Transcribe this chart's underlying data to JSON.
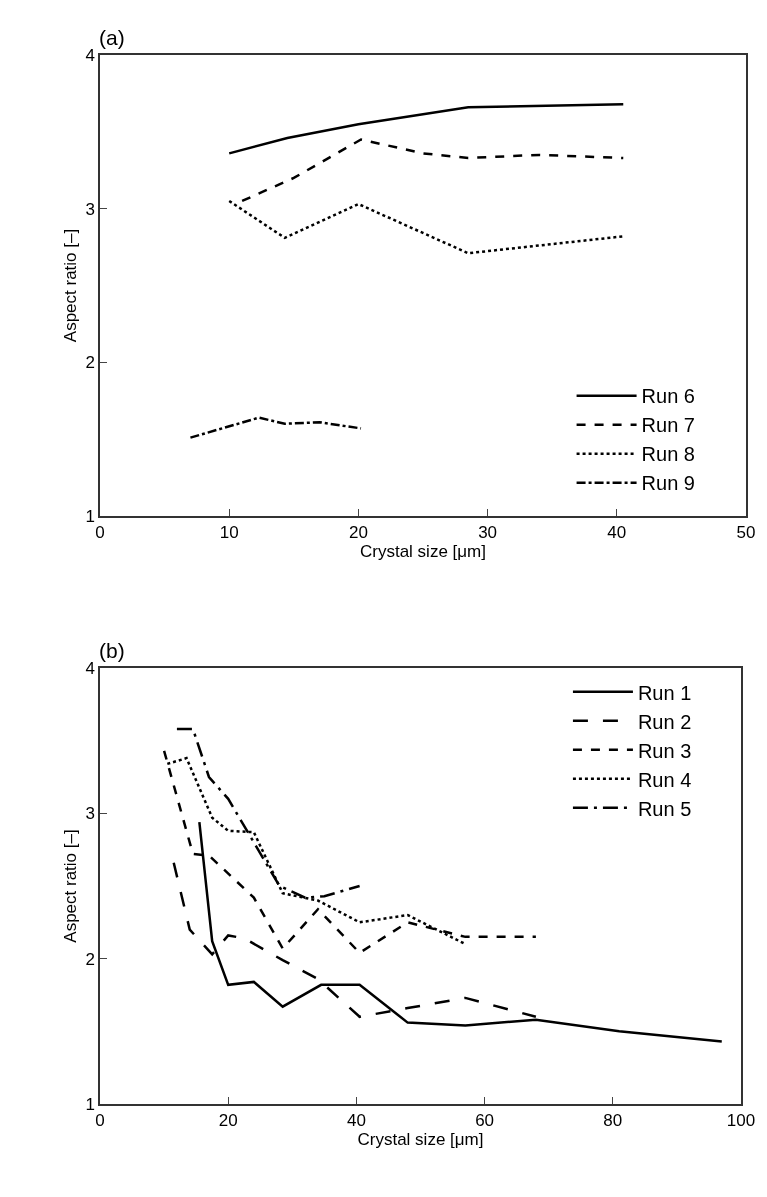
{
  "chart_data": [
    {
      "type": "line",
      "annotations": [
        "(a)"
      ],
      "xlabel": "Crystal size [μm]",
      "ylabel": "Aspect ratio [–]",
      "xlim": [
        0,
        50
      ],
      "xticks": [
        0,
        10,
        20,
        30,
        40,
        50
      ],
      "ylim": [
        1,
        4
      ],
      "yticks": [
        1,
        2,
        3,
        4
      ],
      "grid": false,
      "legend": "bottom right",
      "marker": "none",
      "series": [
        {
          "name": "Run 6",
          "color": "#000000",
          "line_style": "solid",
          "x": [
            10,
            14.5,
            20,
            28.5,
            40.5
          ],
          "values": [
            3.36,
            3.46,
            3.55,
            3.66,
            3.68
          ]
        },
        {
          "name": "Run 7",
          "color": "#000000",
          "line_style": "dashed",
          "x": [
            11,
            15,
            20.2,
            25,
            28.5,
            34,
            40.5
          ],
          "values": [
            3.05,
            3.2,
            3.45,
            3.36,
            3.33,
            3.35,
            3.33
          ]
        },
        {
          "name": "Run 8",
          "color": "#000000",
          "line_style": "dotted",
          "x": [
            10,
            14.3,
            20,
            28.5,
            40.5
          ],
          "values": [
            3.05,
            2.81,
            3.03,
            2.71,
            2.82
          ]
        },
        {
          "name": "Run 9",
          "color": "#000000",
          "line_style": "dash-dot",
          "x": [
            7,
            12.3,
            14.3,
            17,
            20.2
          ],
          "values": [
            1.51,
            1.64,
            1.6,
            1.61,
            1.57
          ]
        }
      ]
    },
    {
      "type": "line",
      "annotations": [
        "(b)"
      ],
      "xlabel": "Crystal size [μm]",
      "ylabel": "Aspect ratio [–]",
      "xlim": [
        0,
        100
      ],
      "xticks": [
        0,
        20,
        40,
        60,
        80,
        100
      ],
      "ylim": [
        1,
        4
      ],
      "yticks": [
        1,
        2,
        3,
        4
      ],
      "grid": false,
      "legend": "top right",
      "marker": "none",
      "series": [
        {
          "name": "Run 1",
          "color": "#000000",
          "line_style": "solid",
          "x": [
            15.5,
            17.5,
            20,
            24,
            28.5,
            34.5,
            40.5,
            48,
            57,
            68,
            81,
            97
          ],
          "values": [
            2.94,
            2.12,
            1.82,
            1.84,
            1.67,
            1.82,
            1.82,
            1.56,
            1.54,
            1.58,
            1.5,
            1.43
          ]
        },
        {
          "name": "Run 2",
          "color": "#000000",
          "line_style": "long-dashed",
          "x": [
            11.5,
            14,
            17.5,
            20,
            22.5,
            28.5,
            34,
            40.5,
            48,
            57,
            68
          ],
          "values": [
            2.66,
            2.2,
            2.03,
            2.16,
            2.14,
            1.99,
            1.86,
            1.6,
            1.66,
            1.73,
            1.6
          ]
        },
        {
          "name": "Run 3",
          "color": "#000000",
          "line_style": "dashed",
          "x": [
            10,
            14.5,
            17,
            24,
            28.5,
            34,
            40.5,
            48,
            57,
            68
          ],
          "values": [
            3.43,
            2.72,
            2.71,
            2.42,
            2.07,
            2.34,
            2.04,
            2.25,
            2.15,
            2.15
          ]
        },
        {
          "name": "Run 4",
          "color": "#000000",
          "line_style": "dotted",
          "x": [
            10.5,
            13.5,
            17.5,
            20,
            24,
            28.5,
            34,
            40.5,
            48,
            57
          ],
          "values": [
            3.34,
            3.38,
            2.97,
            2.88,
            2.87,
            2.45,
            2.4,
            2.25,
            2.3,
            2.1
          ]
        },
        {
          "name": "Run 5",
          "color": "#000000",
          "line_style": "long-dash-dot",
          "x": [
            12,
            14.5,
            17,
            20,
            28,
            32,
            35,
            40.5
          ],
          "values": [
            3.58,
            3.58,
            3.25,
            3.1,
            2.5,
            2.42,
            2.43,
            2.5
          ]
        }
      ]
    }
  ]
}
